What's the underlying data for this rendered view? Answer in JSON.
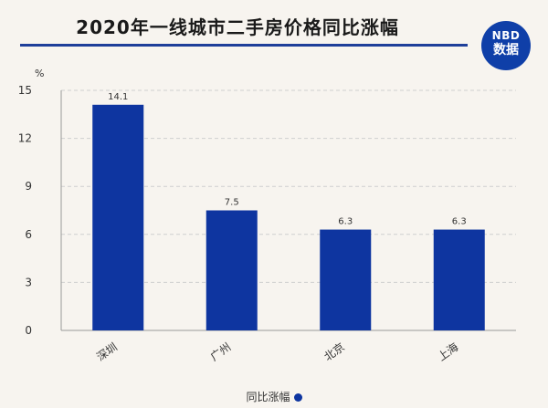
{
  "header": {
    "title": "2020年一线城市二手房价格同比涨幅",
    "logo_top": "NBD",
    "logo_bottom": "数据"
  },
  "colors": {
    "bar": "#0e35a0",
    "title_rule": "#1f3f9a",
    "logo_bg": "#0f3fa8"
  },
  "chart_data": {
    "type": "bar",
    "title": "2020年一线城市二手房价格同比涨幅",
    "ylabel": "%",
    "xlabel": "",
    "categories": [
      "深圳",
      "广州",
      "北京",
      "上海"
    ],
    "series": [
      {
        "name": "同比涨幅",
        "values": [
          14.1,
          7.5,
          6.3,
          6.3
        ]
      }
    ],
    "data_labels": [
      "14.1",
      "7.5",
      "6.3",
      "6.3"
    ],
    "ylim": [
      0,
      15
    ],
    "yticks": [
      0,
      3,
      6,
      9,
      12,
      15
    ],
    "grid": true,
    "legend": "bottom-center"
  }
}
